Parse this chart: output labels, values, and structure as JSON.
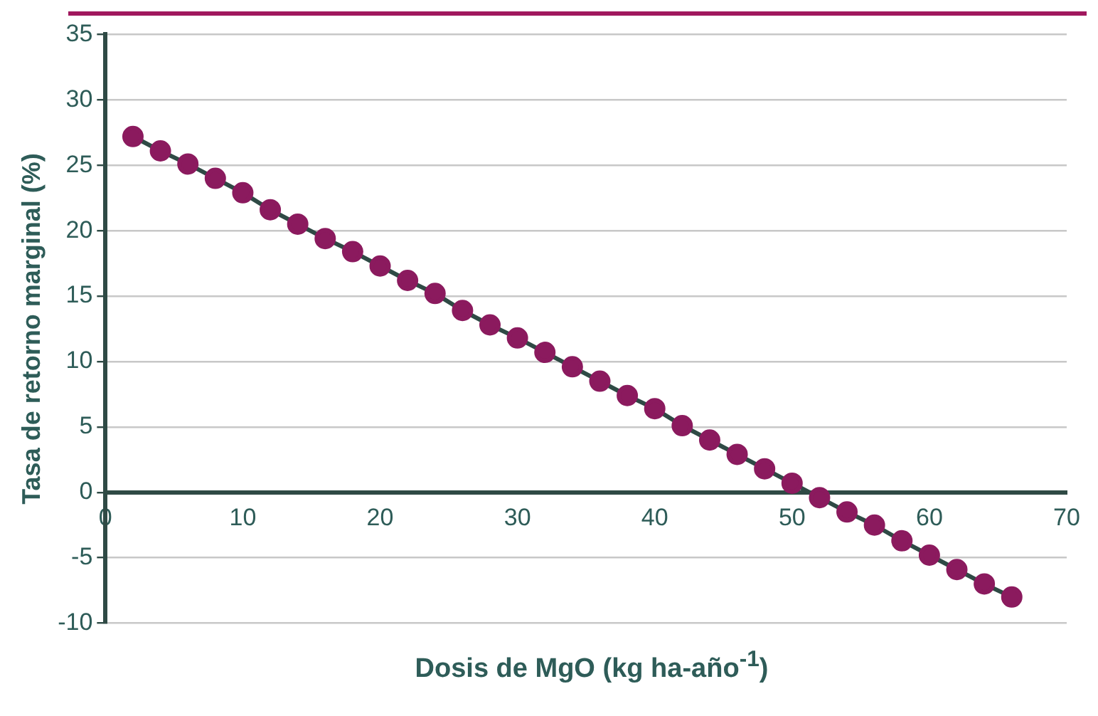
{
  "chart_data": {
    "type": "line",
    "xlabel": "Dosis de MgO (kg ha-año$^{-1}$)",
    "ylabel": "Tasa de retorno marginal (%)",
    "x": [
      2,
      4,
      6,
      8,
      10,
      12,
      14,
      16,
      18,
      20,
      22,
      24,
      26,
      28,
      30,
      32,
      34,
      36,
      38,
      40,
      42,
      44,
      46,
      48,
      50,
      52,
      54,
      56,
      58,
      60,
      62,
      64,
      66
    ],
    "series": [
      {
        "color": "#8b1a5e",
        "values": [
          27.2,
          26.1,
          25.1,
          24.0,
          22.9,
          21.6,
          20.5,
          19.4,
          18.4,
          17.3,
          16.2,
          15.2,
          13.9,
          12.8,
          11.8,
          10.7,
          9.6,
          8.5,
          7.4,
          6.4,
          5.1,
          4.0,
          2.9,
          1.8,
          0.7,
          -0.4,
          -1.5,
          -2.5,
          -3.7,
          -4.8,
          -5.9,
          -7.0,
          -8.0
        ]
      }
    ],
    "xlim": [
      0,
      70
    ],
    "xticks": [
      0,
      10,
      20,
      30,
      40,
      50,
      60,
      70
    ],
    "ylim": [
      -10,
      35
    ],
    "yticks": [
      -10,
      -5,
      0,
      5,
      10,
      15,
      20,
      25,
      30,
      35
    ],
    "grid": "y",
    "legend": false,
    "marker": "circle",
    "line_style": "solid"
  }
}
